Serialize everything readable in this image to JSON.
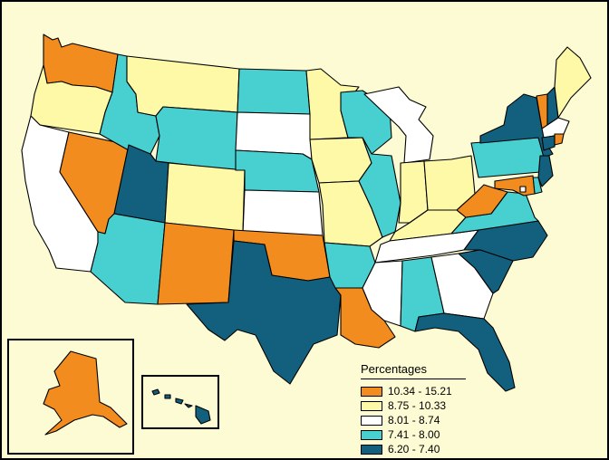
{
  "colors": {
    "background": "#fdfbd3",
    "border": "#000000",
    "class_1": "#f28c1f",
    "class_2": "#fdf9a6",
    "class_3": "#ffffff",
    "class_4": "#48cfd0",
    "class_5": "#13607e"
  },
  "legend": {
    "title": "Percentages",
    "items": [
      {
        "label": "10.34 - 15.21",
        "class": "class_1"
      },
      {
        "label": "8.75 - 10.33",
        "class": "class_2"
      },
      {
        "label": "8.01 - 8.74",
        "class": "class_3"
      },
      {
        "label": "7.41 - 8.00",
        "class": "class_4"
      },
      {
        "label": "6.20 - 7.40",
        "class": "class_5"
      }
    ]
  },
  "states": {
    "WA": "class_1",
    "OR": "class_2",
    "CA": "class_3",
    "NV": "class_1",
    "ID": "class_4",
    "MT": "class_2",
    "WY": "class_4",
    "UT": "class_5",
    "AZ": "class_4",
    "CO": "class_2",
    "NM": "class_1",
    "ND": "class_4",
    "SD": "class_3",
    "NE": "class_4",
    "KS": "class_3",
    "OK": "class_1",
    "TX": "class_5",
    "MN": "class_2",
    "IA": "class_2",
    "MO": "class_2",
    "AR": "class_4",
    "LA": "class_1",
    "WI": "class_4",
    "IL": "class_4",
    "MI": "class_3",
    "IN": "class_2",
    "OH": "class_2",
    "KY": "class_2",
    "TN": "class_3",
    "MS": "class_3",
    "AL": "class_4",
    "GA": "class_3",
    "FL": "class_5",
    "SC": "class_5",
    "NC": "class_5",
    "VA": "class_4",
    "WV": "class_1",
    "PA": "class_4",
    "NY": "class_5",
    "VT": "class_1",
    "NH": "class_5",
    "ME": "class_2",
    "MA": "class_3",
    "RI": "class_1",
    "CT": "class_5",
    "NJ": "class_5",
    "DE": "class_4",
    "MD": "class_1",
    "DC": "class_3",
    "AK": "class_1",
    "HI": "class_5"
  }
}
